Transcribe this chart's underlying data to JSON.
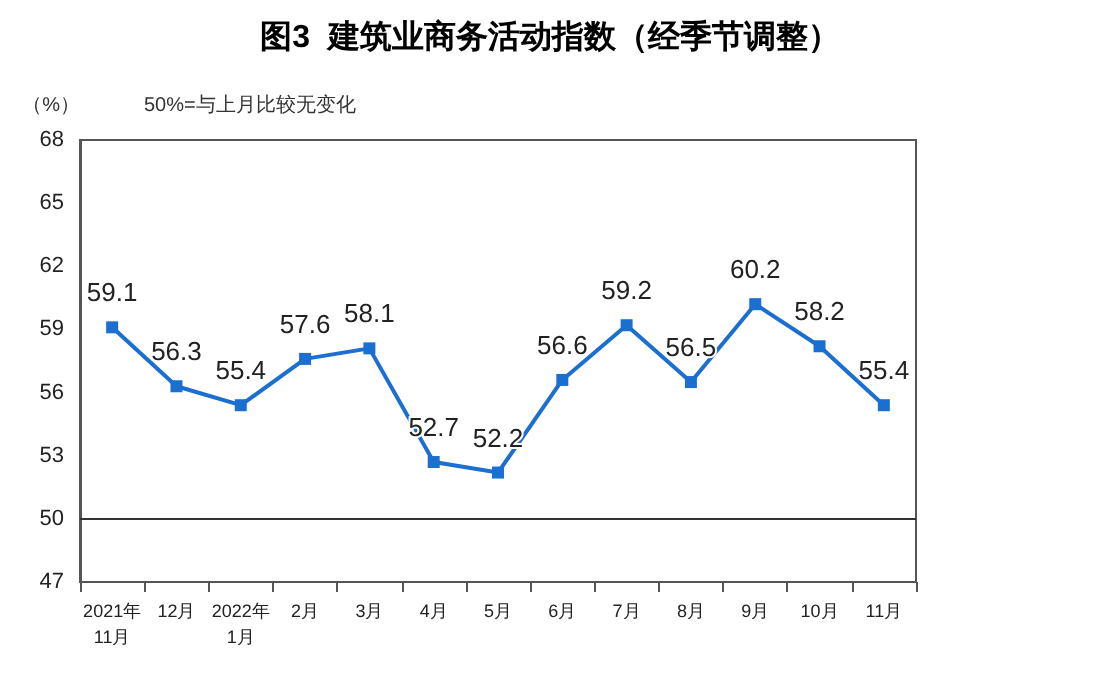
{
  "chart_data": {
    "type": "line",
    "title": "图3  建筑业商务活动指数（经季节调整）",
    "ylabel": "（%）",
    "annotations": [
      "50%=与上月比较无变化"
    ],
    "categories": [
      "2021年\n11月",
      "12月",
      "2022年\n1月",
      "2月",
      "3月",
      "4月",
      "5月",
      "6月",
      "7月",
      "8月",
      "9月",
      "10月",
      "11月"
    ],
    "series": [
      {
        "color": "#1a6fd1",
        "values": [
          59.1,
          56.3,
          55.4,
          57.6,
          58.1,
          52.7,
          52.2,
          56.6,
          59.2,
          56.5,
          60.2,
          58.2,
          55.4
        ]
      }
    ],
    "ylim": [
      47,
      68
    ],
    "yticks": [
      47,
      50,
      53,
      56,
      59,
      62,
      65,
      68
    ],
    "grid": false,
    "marker": "square",
    "line_style": "solid",
    "data_labels": true,
    "ref_lines": [
      {
        "axis": "y",
        "value": 50,
        "color": "#333333"
      }
    ]
  }
}
